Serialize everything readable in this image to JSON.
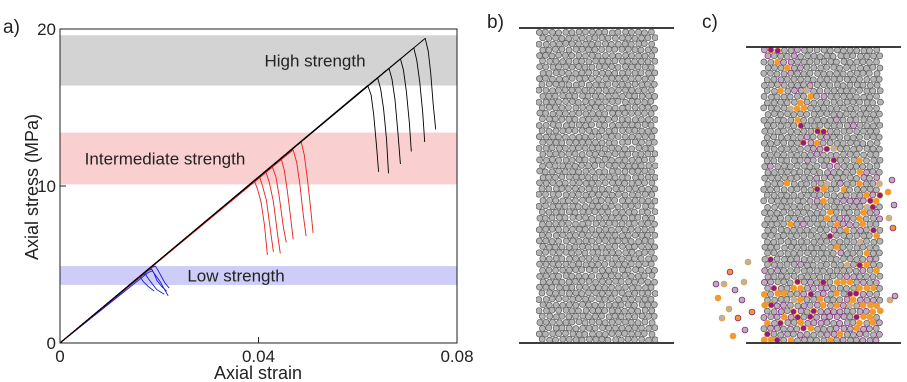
{
  "panels": {
    "a": {
      "label": "a)"
    },
    "b": {
      "label": "b)"
    },
    "c": {
      "label": "c)"
    }
  },
  "colors": {
    "high": "#000000",
    "high_band": "#d3d3d3",
    "intermediate": "#e8201c",
    "intermediate_band": "#f9cfd0",
    "low": "#1b1bd8",
    "low_band": "#cdcdf7",
    "particle_fill": "#b4b4b4",
    "particle_stroke": "#5a5a5a",
    "crack_orange": "#f29a2e",
    "crack_purple": "#8a1e86",
    "platen": "#222222"
  },
  "chart_data": {
    "type": "line",
    "xlabel": "Axial strain",
    "ylabel": "Axial stress (MPa)",
    "xlim": [
      0,
      0.08
    ],
    "ylim": [
      0,
      20
    ],
    "x_ticks": [
      {
        "value": 0,
        "label": "0"
      },
      {
        "value": 0.04,
        "label": "0.04"
      },
      {
        "value": 0.08,
        "label": "0.08"
      }
    ],
    "y_ticks": [
      {
        "value": 0,
        "label": "0"
      },
      {
        "value": 10,
        "label": "10"
      },
      {
        "value": 20,
        "label": "20"
      }
    ],
    "grid": false,
    "bands": [
      {
        "label": "High strength",
        "range": [
          16.4,
          19.6
        ],
        "color": "#d3d3d3"
      },
      {
        "label": "Intermediate strength",
        "range": [
          10.1,
          13.4
        ],
        "color": "#f9cfd0"
      },
      {
        "label": "Low strength",
        "range": [
          3.7,
          4.9
        ],
        "color": "#cdcdf7"
      }
    ],
    "series": [
      {
        "group": "low",
        "color": "#1b1bd8",
        "x": [
          0,
          0.0175,
          0.0185,
          0.019,
          0.0195,
          0.0205,
          0.0215
        ],
        "y": [
          0,
          4.6,
          4.7,
          4.4,
          4.0,
          3.6,
          3.3
        ]
      },
      {
        "group": "low",
        "color": "#1b1bd8",
        "x": [
          0,
          0.0165,
          0.0172,
          0.0178,
          0.0185,
          0.0195,
          0.021
        ],
        "y": [
          0,
          4.3,
          4.4,
          4.1,
          3.8,
          3.4,
          3.1
        ]
      },
      {
        "group": "low",
        "color": "#1b1bd8",
        "x": [
          0,
          0.0185,
          0.0192,
          0.0198,
          0.0205,
          0.0212,
          0.022
        ],
        "y": [
          0,
          4.8,
          4.9,
          4.6,
          4.2,
          3.8,
          3.5
        ]
      },
      {
        "group": "low",
        "color": "#1b1bd8",
        "x": [
          0,
          0.0155,
          0.0162,
          0.0168,
          0.0178,
          0.019
        ],
        "y": [
          0,
          4.1,
          4.2,
          3.9,
          3.6,
          3.3
        ]
      },
      {
        "group": "low",
        "color": "#1b1bd8",
        "x": [
          0,
          0.0178,
          0.0186,
          0.0193,
          0.0202,
          0.0218
        ],
        "y": [
          0,
          4.5,
          4.6,
          4.3,
          3.9,
          3.0
        ]
      },
      {
        "group": "intermediate",
        "color": "#e8201c",
        "x": [
          0,
          0.0385,
          0.0392,
          0.0398,
          0.0405,
          0.0412,
          0.0418
        ],
        "y": [
          0,
          10.1,
          10.3,
          9.8,
          9.0,
          7.5,
          5.6
        ]
      },
      {
        "group": "intermediate",
        "color": "#e8201c",
        "x": [
          0,
          0.0395,
          0.0402,
          0.0408,
          0.0416,
          0.0424,
          0.043
        ],
        "y": [
          0,
          10.4,
          10.6,
          10.0,
          9.1,
          7.2,
          5.8
        ]
      },
      {
        "group": "intermediate",
        "color": "#e8201c",
        "x": [
          0,
          0.0408,
          0.0415,
          0.0422,
          0.043,
          0.0438,
          0.0444
        ],
        "y": [
          0,
          10.7,
          10.9,
          10.2,
          9.0,
          7.0,
          5.7
        ]
      },
      {
        "group": "intermediate",
        "color": "#e8201c",
        "x": [
          0,
          0.042,
          0.0428,
          0.0435,
          0.0442,
          0.045,
          0.0456
        ],
        "y": [
          0,
          11.0,
          11.2,
          10.6,
          9.3,
          7.4,
          6.4
        ]
      },
      {
        "group": "intermediate",
        "color": "#e8201c",
        "x": [
          0,
          0.0462,
          0.047,
          0.0477,
          0.0483,
          0.049,
          0.0496
        ],
        "y": [
          0,
          12.1,
          12.3,
          11.5,
          10.2,
          8.2,
          6.8
        ]
      },
      {
        "group": "intermediate",
        "color": "#e8201c",
        "x": [
          0,
          0.0478,
          0.0486,
          0.0492,
          0.0498,
          0.0505,
          0.051
        ],
        "y": [
          0,
          12.6,
          12.8,
          12.0,
          10.6,
          8.6,
          7.0
        ]
      },
      {
        "group": "intermediate",
        "color": "#e8201c",
        "x": [
          0,
          0.0438,
          0.0446,
          0.0452,
          0.0458,
          0.0465,
          0.047
        ],
        "y": [
          0,
          11.5,
          11.7,
          11.0,
          9.7,
          7.9,
          6.6
        ]
      },
      {
        "group": "high",
        "color": "#000000",
        "x": [
          0,
          0.0612,
          0.062,
          0.0627,
          0.0632,
          0.0638,
          0.0642
        ],
        "y": [
          0,
          16.2,
          16.4,
          15.8,
          14.6,
          12.5,
          10.9
        ]
      },
      {
        "group": "high",
        "color": "#000000",
        "x": [
          0,
          0.0632,
          0.064,
          0.0646,
          0.0652,
          0.0658,
          0.0662
        ],
        "y": [
          0,
          16.7,
          16.9,
          16.2,
          14.9,
          13.0,
          10.8
        ]
      },
      {
        "group": "high",
        "color": "#000000",
        "x": [
          0,
          0.0655,
          0.0663,
          0.0669,
          0.0675,
          0.0681,
          0.0686
        ],
        "y": [
          0,
          17.3,
          17.5,
          16.8,
          15.5,
          13.4,
          11.4
        ]
      },
      {
        "group": "high",
        "color": "#000000",
        "x": [
          0,
          0.0678,
          0.0686,
          0.0692,
          0.0698,
          0.0704,
          0.0708
        ],
        "y": [
          0,
          17.9,
          18.1,
          17.4,
          16.0,
          14.0,
          12.2
        ]
      },
      {
        "group": "high",
        "color": "#000000",
        "x": [
          0,
          0.0705,
          0.0713,
          0.0719,
          0.0725,
          0.0731,
          0.0735
        ],
        "y": [
          0,
          18.6,
          18.8,
          18.0,
          16.6,
          14.6,
          12.8
        ]
      },
      {
        "group": "high",
        "color": "#000000",
        "x": [
          0,
          0.0728,
          0.0736,
          0.0742,
          0.0747,
          0.0752,
          0.0757
        ],
        "y": [
          0,
          19.2,
          19.4,
          18.6,
          17.2,
          15.2,
          13.6
        ]
      }
    ]
  }
}
